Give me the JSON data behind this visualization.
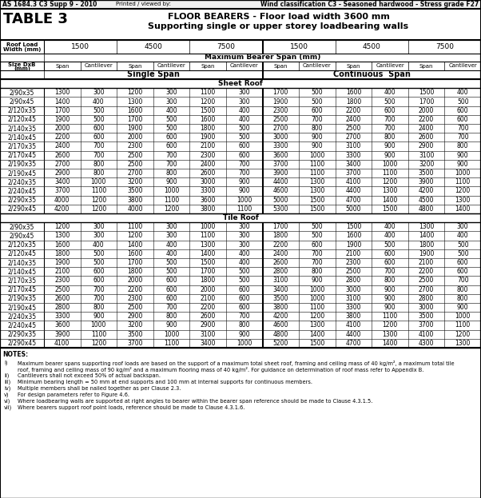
{
  "header_std": "AS 1684.3 C3 Supp 9 - 2010",
  "header_printed": "Printed / viewed by:",
  "header_wind": "Wind classification C3 - Seasoned hardwood - Stress grade F27",
  "title_left": "TABLE 3",
  "title_right1": "FLOOR BEARERS - Floor load width 3600 mm",
  "title_right2": "Supporting single or upper storey loadbearing walls",
  "roof_loads": [
    "1500",
    "4500",
    "7500",
    "1500",
    "4500",
    "7500"
  ],
  "col_headers": [
    "Span",
    "Cantilever",
    "Span",
    "Cantilever",
    "Span",
    "Cantilever",
    "Span",
    "Cantilever",
    "Span",
    "Cantilever",
    "Span",
    "Cantilever"
  ],
  "sheet_roof_rows": [
    [
      "2/90x35",
      1300,
      300,
      1200,
      300,
      1100,
      300,
      1700,
      500,
      1600,
      400,
      1500,
      400
    ],
    [
      "2/90x45",
      1400,
      400,
      1300,
      300,
      1200,
      300,
      1900,
      500,
      1800,
      500,
      1700,
      500
    ],
    [
      "2/120x35",
      1700,
      500,
      1600,
      400,
      1500,
      400,
      2300,
      600,
      2200,
      600,
      2000,
      600
    ],
    [
      "2/120x45",
      1900,
      500,
      1700,
      500,
      1600,
      400,
      2500,
      700,
      2400,
      700,
      2200,
      600
    ],
    [
      "2/140x35",
      2000,
      600,
      1900,
      500,
      1800,
      500,
      2700,
      800,
      2500,
      700,
      2400,
      700
    ],
    [
      "2/140x45",
      2200,
      600,
      2000,
      600,
      1900,
      500,
      3000,
      900,
      2700,
      800,
      2600,
      700
    ],
    [
      "2/170x35",
      2400,
      700,
      2300,
      600,
      2100,
      600,
      3300,
      900,
      3100,
      900,
      2900,
      800
    ],
    [
      "2/170x45",
      2600,
      700,
      2500,
      700,
      2300,
      600,
      3600,
      1000,
      3300,
      900,
      3100,
      900
    ],
    [
      "2/190x35",
      2700,
      800,
      2500,
      700,
      2400,
      700,
      3700,
      1100,
      3400,
      1000,
      3200,
      900
    ],
    [
      "2/190x45",
      2900,
      800,
      2700,
      800,
      2600,
      700,
      3900,
      1100,
      3700,
      1100,
      3500,
      1000
    ],
    [
      "2/240x35",
      3400,
      1000,
      3200,
      900,
      3000,
      900,
      4400,
      1300,
      4100,
      1200,
      3900,
      1100
    ],
    [
      "2/240x45",
      3700,
      1100,
      3500,
      1000,
      3300,
      900,
      4600,
      1300,
      4400,
      1300,
      4200,
      1200
    ],
    [
      "2/290x35",
      4000,
      1200,
      3800,
      1100,
      3600,
      1000,
      5000,
      1500,
      4700,
      1400,
      4500,
      1300
    ],
    [
      "2/290x45",
      4200,
      1200,
      4000,
      1200,
      3800,
      1100,
      5300,
      1500,
      5000,
      1500,
      4800,
      1400
    ]
  ],
  "tile_roof_rows": [
    [
      "2/90x35",
      1200,
      300,
      1100,
      300,
      1000,
      300,
      1700,
      500,
      1500,
      400,
      1300,
      300
    ],
    [
      "2/90x45",
      1300,
      300,
      1200,
      300,
      1100,
      300,
      1800,
      500,
      1600,
      400,
      1400,
      400
    ],
    [
      "2/120x35",
      1600,
      400,
      1400,
      400,
      1300,
      300,
      2200,
      600,
      1900,
      500,
      1800,
      500
    ],
    [
      "2/120x45",
      1800,
      500,
      1600,
      400,
      1400,
      400,
      2400,
      700,
      2100,
      600,
      1900,
      500
    ],
    [
      "2/140x35",
      1900,
      500,
      1700,
      500,
      1500,
      400,
      2600,
      700,
      2300,
      600,
      2100,
      600
    ],
    [
      "2/140x45",
      2100,
      600,
      1800,
      500,
      1700,
      500,
      2800,
      800,
      2500,
      700,
      2200,
      600
    ],
    [
      "2/170x35",
      2300,
      600,
      2000,
      600,
      1800,
      500,
      3100,
      900,
      2800,
      800,
      2500,
      700
    ],
    [
      "2/170x45",
      2500,
      700,
      2200,
      600,
      2000,
      600,
      3400,
      1000,
      3000,
      900,
      2700,
      800
    ],
    [
      "2/190x35",
      2600,
      700,
      2300,
      600,
      2100,
      600,
      3500,
      1000,
      3100,
      900,
      2800,
      800
    ],
    [
      "2/190x45",
      2800,
      800,
      2500,
      700,
      2200,
      600,
      3800,
      1100,
      3300,
      900,
      3000,
      900
    ],
    [
      "2/240x35",
      3300,
      900,
      2900,
      800,
      2600,
      700,
      4200,
      1200,
      3800,
      1100,
      3500,
      1000
    ],
    [
      "2/240x45",
      3600,
      1000,
      3200,
      900,
      2900,
      800,
      4600,
      1300,
      4100,
      1200,
      3700,
      1100
    ],
    [
      "2/290x35",
      3900,
      1100,
      3500,
      1000,
      3100,
      900,
      4800,
      1400,
      4400,
      1300,
      4100,
      1200
    ],
    [
      "2/290x45",
      4100,
      1200,
      3700,
      1100,
      3400,
      1000,
      5200,
      1500,
      4700,
      1400,
      4300,
      1300
    ]
  ],
  "notes_label": "NOTES:",
  "notes": [
    [
      "i)",
      "Maximum bearer spans supporting roof loads are based on the support of a maximum total sheet roof, framing and ceiling mass of 40 kg/m², a maximum total tile"
    ],
    [
      "",
      "roof, framing and ceiling mass of 90 kg/m² and a maximum flooring mass of 40 kg/m². For guidance on determination of roof mass refer to Appendix B."
    ],
    [
      "ii)",
      "Cantilevers shall not exceed 50% of actual backspan."
    ],
    [
      "iii)",
      "Minimum bearing length = 50 mm at end supports and 100 mm at internal supports for continuous members."
    ],
    [
      "iv)",
      "Multiple members shall be nailed together as per Clause 2.3."
    ],
    [
      "v)",
      "For design parameters refer to Figure 4.6."
    ],
    [
      "vi)",
      "Where loadbearing walls are supported at right angles to bearer within the bearer span reference should be made to Clause 4.3.1.5."
    ],
    [
      "vii)",
      "Where bearers support roof point loads, reference should be made to Clause 4.3.1.6."
    ]
  ]
}
